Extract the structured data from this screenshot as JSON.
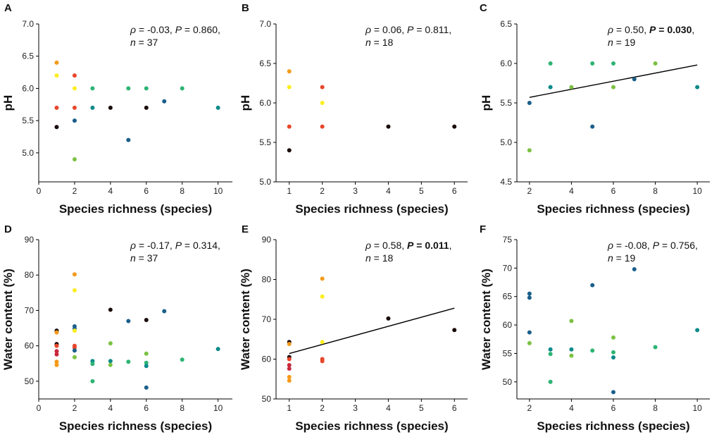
{
  "figure": {
    "colors": {
      "black": "#1a0a0a",
      "crimson": "#c8283c",
      "red": "#e8462a",
      "orange": "#f49a1a",
      "yellow": "#fcee21",
      "lightgreen": "#7cc142",
      "green": "#2db473",
      "teal": "#0e8a8a",
      "blue": "#1a5f8a"
    }
  },
  "chart_data": [
    {
      "panel": "A",
      "type": "scatter",
      "xlabel": "Species richness (species)",
      "ylabel": "pH",
      "xlim": [
        0,
        10.8
      ],
      "ylim": [
        4.55,
        7.0
      ],
      "xticks": [
        0,
        2,
        4,
        6,
        8,
        10
      ],
      "yticks": [
        5.0,
        5.5,
        6.0,
        6.5,
        7.0
      ],
      "stat": {
        "rho": "ρ",
        "line1": " = -0.03, ",
        "p": "P",
        "line1b": " = 0.860,",
        "n": "n",
        "line2": " = 37",
        "bold": false
      },
      "fit": null,
      "points": [
        {
          "x": 1,
          "y": 6.4,
          "c": "orange"
        },
        {
          "x": 1,
          "y": 6.2,
          "c": "yellow"
        },
        {
          "x": 1,
          "y": 5.7,
          "c": "red"
        },
        {
          "x": 1,
          "y": 5.4,
          "c": "black"
        },
        {
          "x": 2,
          "y": 6.2,
          "c": "red"
        },
        {
          "x": 2,
          "y": 6.0,
          "c": "yellow"
        },
        {
          "x": 2,
          "y": 5.7,
          "c": "red"
        },
        {
          "x": 2,
          "y": 5.5,
          "c": "blue"
        },
        {
          "x": 2,
          "y": 4.9,
          "c": "lightgreen"
        },
        {
          "x": 3,
          "y": 6.0,
          "c": "green"
        },
        {
          "x": 3,
          "y": 5.7,
          "c": "teal"
        },
        {
          "x": 4,
          "y": 5.7,
          "c": "black"
        },
        {
          "x": 5,
          "y": 6.0,
          "c": "green"
        },
        {
          "x": 5,
          "y": 5.2,
          "c": "blue"
        },
        {
          "x": 6,
          "y": 6.0,
          "c": "green"
        },
        {
          "x": 6,
          "y": 5.7,
          "c": "black"
        },
        {
          "x": 7,
          "y": 5.8,
          "c": "blue"
        },
        {
          "x": 8,
          "y": 6.0,
          "c": "green"
        },
        {
          "x": 10,
          "y": 5.7,
          "c": "teal"
        }
      ]
    },
    {
      "panel": "B",
      "type": "scatter",
      "xlabel": "Species richness (species)",
      "ylabel": "pH",
      "xlim": [
        0.6,
        6.4
      ],
      "ylim": [
        5.0,
        7.0
      ],
      "xticks": [
        1,
        2,
        3,
        4,
        5,
        6
      ],
      "yticks": [
        5.0,
        5.5,
        6.0,
        6.5,
        7.0
      ],
      "stat": {
        "rho": "ρ",
        "line1": " = 0.06, ",
        "p": "P",
        "line1b": " = 0.811,",
        "n": "n",
        "line2": " = 18",
        "bold": false
      },
      "fit": null,
      "points": [
        {
          "x": 1,
          "y": 6.4,
          "c": "orange"
        },
        {
          "x": 1,
          "y": 6.2,
          "c": "yellow"
        },
        {
          "x": 1,
          "y": 5.7,
          "c": "red"
        },
        {
          "x": 1,
          "y": 5.4,
          "c": "black"
        },
        {
          "x": 2,
          "y": 6.2,
          "c": "red"
        },
        {
          "x": 2,
          "y": 6.0,
          "c": "yellow"
        },
        {
          "x": 2,
          "y": 5.7,
          "c": "red"
        },
        {
          "x": 4,
          "y": 5.7,
          "c": "black"
        },
        {
          "x": 6,
          "y": 5.7,
          "c": "black"
        }
      ]
    },
    {
      "panel": "C",
      "type": "scatter",
      "xlabel": "Species richness (species)",
      "ylabel": "pH",
      "xlim": [
        1.4,
        10.6
      ],
      "ylim": [
        4.5,
        6.5
      ],
      "xticks": [
        2,
        4,
        6,
        8,
        10
      ],
      "yticks": [
        4.5,
        5.0,
        5.5,
        6.0,
        6.5
      ],
      "stat": {
        "rho": "ρ",
        "line1": " = 0.50, ",
        "p": "P",
        "line1b": " = 0.030",
        "tail": ",",
        "n": "n",
        "line2": " = 19",
        "bold": true
      },
      "fit": {
        "x1": 2,
        "y1": 5.57,
        "x2": 10,
        "y2": 5.98
      },
      "points": [
        {
          "x": 2,
          "y": 5.5,
          "c": "blue"
        },
        {
          "x": 2,
          "y": 4.9,
          "c": "lightgreen"
        },
        {
          "x": 3,
          "y": 6.0,
          "c": "green"
        },
        {
          "x": 3,
          "y": 5.7,
          "c": "teal"
        },
        {
          "x": 4,
          "y": 5.7,
          "c": "lightgreen"
        },
        {
          "x": 5,
          "y": 6.0,
          "c": "green"
        },
        {
          "x": 5,
          "y": 5.2,
          "c": "blue"
        },
        {
          "x": 6,
          "y": 6.0,
          "c": "green"
        },
        {
          "x": 6,
          "y": 5.7,
          "c": "lightgreen"
        },
        {
          "x": 7,
          "y": 5.8,
          "c": "blue"
        },
        {
          "x": 8,
          "y": 6.0,
          "c": "lightgreen"
        },
        {
          "x": 10,
          "y": 5.7,
          "c": "teal"
        }
      ]
    },
    {
      "panel": "D",
      "type": "scatter",
      "xlabel": "Species richness (species)",
      "ylabel": "Water content (%)",
      "xlim": [
        0,
        10.8
      ],
      "ylim": [
        45,
        90
      ],
      "xticks": [
        0,
        2,
        4,
        6,
        8,
        10
      ],
      "yticks": [
        50,
        60,
        70,
        80,
        90
      ],
      "stat": {
        "rho": "ρ",
        "line1": " = -0.17, ",
        "p": "P",
        "line1b": " = 0.314,",
        "n": "n",
        "line2": " = 37",
        "bold": false
      },
      "fit": null,
      "points": [
        {
          "x": 1,
          "y": 64.3,
          "c": "black"
        },
        {
          "x": 1,
          "y": 63.8,
          "c": "orange"
        },
        {
          "x": 1,
          "y": 60.5,
          "c": "black"
        },
        {
          "x": 1,
          "y": 60.0,
          "c": "red"
        },
        {
          "x": 1,
          "y": 58.5,
          "c": "crimson"
        },
        {
          "x": 1,
          "y": 57.6,
          "c": "crimson"
        },
        {
          "x": 1,
          "y": 55.5,
          "c": "orange"
        },
        {
          "x": 1,
          "y": 54.6,
          "c": "orange"
        },
        {
          "x": 2,
          "y": 80.2,
          "c": "orange"
        },
        {
          "x": 2,
          "y": 75.7,
          "c": "yellow"
        },
        {
          "x": 2,
          "y": 65.5,
          "c": "blue"
        },
        {
          "x": 2,
          "y": 64.8,
          "c": "blue"
        },
        {
          "x": 2,
          "y": 64.3,
          "c": "yellow"
        },
        {
          "x": 2,
          "y": 60.0,
          "c": "red"
        },
        {
          "x": 2,
          "y": 59.5,
          "c": "red"
        },
        {
          "x": 2,
          "y": 58.7,
          "c": "blue"
        },
        {
          "x": 2,
          "y": 56.8,
          "c": "lightgreen"
        },
        {
          "x": 3,
          "y": 55.7,
          "c": "teal"
        },
        {
          "x": 3,
          "y": 54.9,
          "c": "green"
        },
        {
          "x": 3,
          "y": 50.0,
          "c": "green"
        },
        {
          "x": 4,
          "y": 70.2,
          "c": "black"
        },
        {
          "x": 4,
          "y": 60.7,
          "c": "lightgreen"
        },
        {
          "x": 4,
          "y": 55.7,
          "c": "teal"
        },
        {
          "x": 4,
          "y": 54.6,
          "c": "lightgreen"
        },
        {
          "x": 5,
          "y": 67.0,
          "c": "blue"
        },
        {
          "x": 5,
          "y": 55.5,
          "c": "green"
        },
        {
          "x": 6,
          "y": 67.3,
          "c": "black"
        },
        {
          "x": 6,
          "y": 57.8,
          "c": "lightgreen"
        },
        {
          "x": 6,
          "y": 55.2,
          "c": "green"
        },
        {
          "x": 6,
          "y": 54.3,
          "c": "teal"
        },
        {
          "x": 6,
          "y": 48.2,
          "c": "blue"
        },
        {
          "x": 7,
          "y": 69.8,
          "c": "blue"
        },
        {
          "x": 8,
          "y": 56.1,
          "c": "green"
        },
        {
          "x": 10,
          "y": 59.1,
          "c": "teal"
        }
      ]
    },
    {
      "panel": "E",
      "type": "scatter",
      "xlabel": "Species richness (species)",
      "ylabel": "Water content (%)",
      "xlim": [
        0.6,
        6.4
      ],
      "ylim": [
        50,
        90
      ],
      "xticks": [
        1,
        2,
        3,
        4,
        5,
        6
      ],
      "yticks": [
        50,
        60,
        70,
        80,
        90
      ],
      "stat": {
        "rho": "ρ",
        "line1": " = 0.58, ",
        "p": "P",
        "line1b": " = 0.011",
        "tail": ",",
        "n": "n",
        "line2": " = 18",
        "bold": true
      },
      "fit": {
        "x1": 1,
        "y1": 61.4,
        "x2": 6,
        "y2": 72.8
      },
      "points": [
        {
          "x": 1,
          "y": 64.3,
          "c": "black"
        },
        {
          "x": 1,
          "y": 63.8,
          "c": "orange"
        },
        {
          "x": 1,
          "y": 60.5,
          "c": "black"
        },
        {
          "x": 1,
          "y": 60.0,
          "c": "red"
        },
        {
          "x": 1,
          "y": 58.5,
          "c": "crimson"
        },
        {
          "x": 1,
          "y": 57.6,
          "c": "crimson"
        },
        {
          "x": 1,
          "y": 55.5,
          "c": "orange"
        },
        {
          "x": 1,
          "y": 54.6,
          "c": "orange"
        },
        {
          "x": 2,
          "y": 80.2,
          "c": "orange"
        },
        {
          "x": 2,
          "y": 75.7,
          "c": "yellow"
        },
        {
          "x": 2,
          "y": 64.3,
          "c": "yellow"
        },
        {
          "x": 2,
          "y": 60.0,
          "c": "red"
        },
        {
          "x": 2,
          "y": 59.5,
          "c": "red"
        },
        {
          "x": 4,
          "y": 70.2,
          "c": "black"
        },
        {
          "x": 6,
          "y": 67.3,
          "c": "black"
        }
      ]
    },
    {
      "panel": "F",
      "type": "scatter",
      "xlabel": "Species richness (species)",
      "ylabel": "Water content (%)",
      "xlim": [
        1.4,
        10.6
      ],
      "ylim": [
        47,
        75
      ],
      "xticks": [
        2,
        4,
        6,
        8,
        10
      ],
      "yticks": [
        50,
        55,
        60,
        65,
        70,
        75
      ],
      "stat": {
        "rho": "ρ",
        "line1": " = -0.08, ",
        "p": "P",
        "line1b": " = 0.756,",
        "n": "n",
        "line2": " = 19",
        "bold": false
      },
      "fit": null,
      "points": [
        {
          "x": 2,
          "y": 65.5,
          "c": "blue"
        },
        {
          "x": 2,
          "y": 64.8,
          "c": "blue"
        },
        {
          "x": 2,
          "y": 58.7,
          "c": "blue"
        },
        {
          "x": 2,
          "y": 56.8,
          "c": "lightgreen"
        },
        {
          "x": 3,
          "y": 55.7,
          "c": "teal"
        },
        {
          "x": 3,
          "y": 54.9,
          "c": "green"
        },
        {
          "x": 3,
          "y": 50.0,
          "c": "green"
        },
        {
          "x": 4,
          "y": 60.7,
          "c": "lightgreen"
        },
        {
          "x": 4,
          "y": 55.7,
          "c": "teal"
        },
        {
          "x": 4,
          "y": 54.6,
          "c": "lightgreen"
        },
        {
          "x": 5,
          "y": 67.0,
          "c": "blue"
        },
        {
          "x": 5,
          "y": 55.5,
          "c": "green"
        },
        {
          "x": 6,
          "y": 57.8,
          "c": "lightgreen"
        },
        {
          "x": 6,
          "y": 55.2,
          "c": "green"
        },
        {
          "x": 6,
          "y": 54.3,
          "c": "teal"
        },
        {
          "x": 6,
          "y": 48.2,
          "c": "blue"
        },
        {
          "x": 7,
          "y": 69.8,
          "c": "blue"
        },
        {
          "x": 8,
          "y": 56.1,
          "c": "green"
        },
        {
          "x": 10,
          "y": 59.1,
          "c": "teal"
        }
      ]
    }
  ]
}
